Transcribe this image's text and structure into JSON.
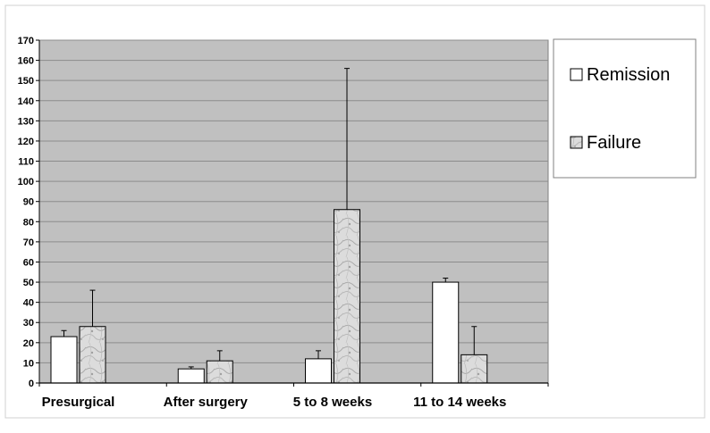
{
  "chart_data": {
    "type": "bar",
    "categories": [
      "Presurgical",
      "After surgery",
      "5 to 8 weeks",
      "11 to 14 weeks"
    ],
    "series": [
      {
        "name": "Remission",
        "values": [
          23,
          7,
          12,
          50
        ],
        "error_upper": [
          26,
          8,
          16,
          52
        ],
        "color": "#ffffff"
      },
      {
        "name": "Failure",
        "values": [
          28,
          11,
          86,
          14
        ],
        "error_upper": [
          46,
          16,
          156,
          28
        ],
        "color": "#d9d9d9",
        "pattern": "gray-marble"
      }
    ],
    "y_ticks": [
      0,
      10,
      20,
      30,
      40,
      50,
      60,
      70,
      80,
      90,
      100,
      110,
      120,
      130,
      140,
      150,
      160,
      170
    ],
    "ylim": [
      0,
      170
    ],
    "grid": true,
    "plot_background": "#c0c0c0",
    "legend_position": "right",
    "title": "",
    "xlabel": "",
    "ylabel": ""
  }
}
